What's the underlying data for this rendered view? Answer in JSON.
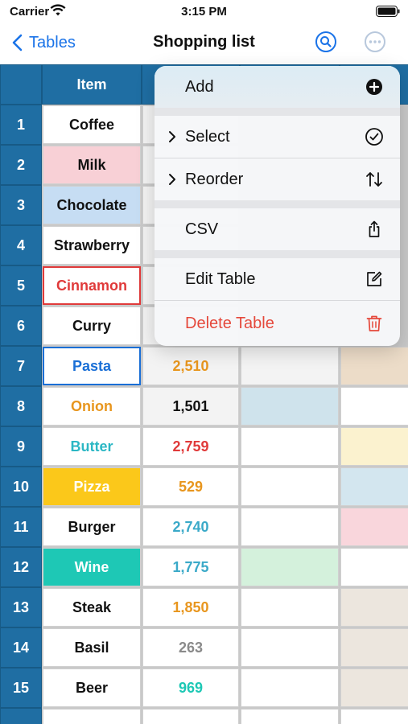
{
  "status": {
    "carrier": "Carrier",
    "time": "3:15 PM"
  },
  "nav": {
    "back_label": "Tables",
    "title": "Shopping list"
  },
  "table": {
    "columns": [
      "Item",
      "",
      "",
      "",
      ""
    ],
    "rows": [
      {
        "n": "1",
        "item": "Coffee",
        "num": ""
      },
      {
        "n": "2",
        "item": "Milk",
        "num": ""
      },
      {
        "n": "3",
        "item": "Chocolate",
        "num": ""
      },
      {
        "n": "4",
        "item": "Strawberry",
        "num": ""
      },
      {
        "n": "5",
        "item": "Cinnamon",
        "num": ""
      },
      {
        "n": "6",
        "item": "Curry",
        "num": ""
      },
      {
        "n": "7",
        "item": "Pasta",
        "num": "2,510"
      },
      {
        "n": "8",
        "item": "Onion",
        "num": "1,501"
      },
      {
        "n": "9",
        "item": "Butter",
        "num": "2,759"
      },
      {
        "n": "10",
        "item": "Pizza",
        "num": "529"
      },
      {
        "n": "11",
        "item": "Burger",
        "num": "2,740"
      },
      {
        "n": "12",
        "item": "Wine",
        "num": "1,775"
      },
      {
        "n": "13",
        "item": "Steak",
        "num": "1,850"
      },
      {
        "n": "14",
        "item": "Basil",
        "num": "263"
      },
      {
        "n": "15",
        "item": "Beer",
        "num": "969"
      }
    ]
  },
  "menu": {
    "add": "Add",
    "select": "Select",
    "reorder": "Reorder",
    "csv": "CSV",
    "edit_table": "Edit Table",
    "delete_table": "Delete Table"
  },
  "colors": {
    "header_blue": "#1f6ea3",
    "accent_blue": "#1a73e8",
    "danger_red": "#e5483b"
  }
}
